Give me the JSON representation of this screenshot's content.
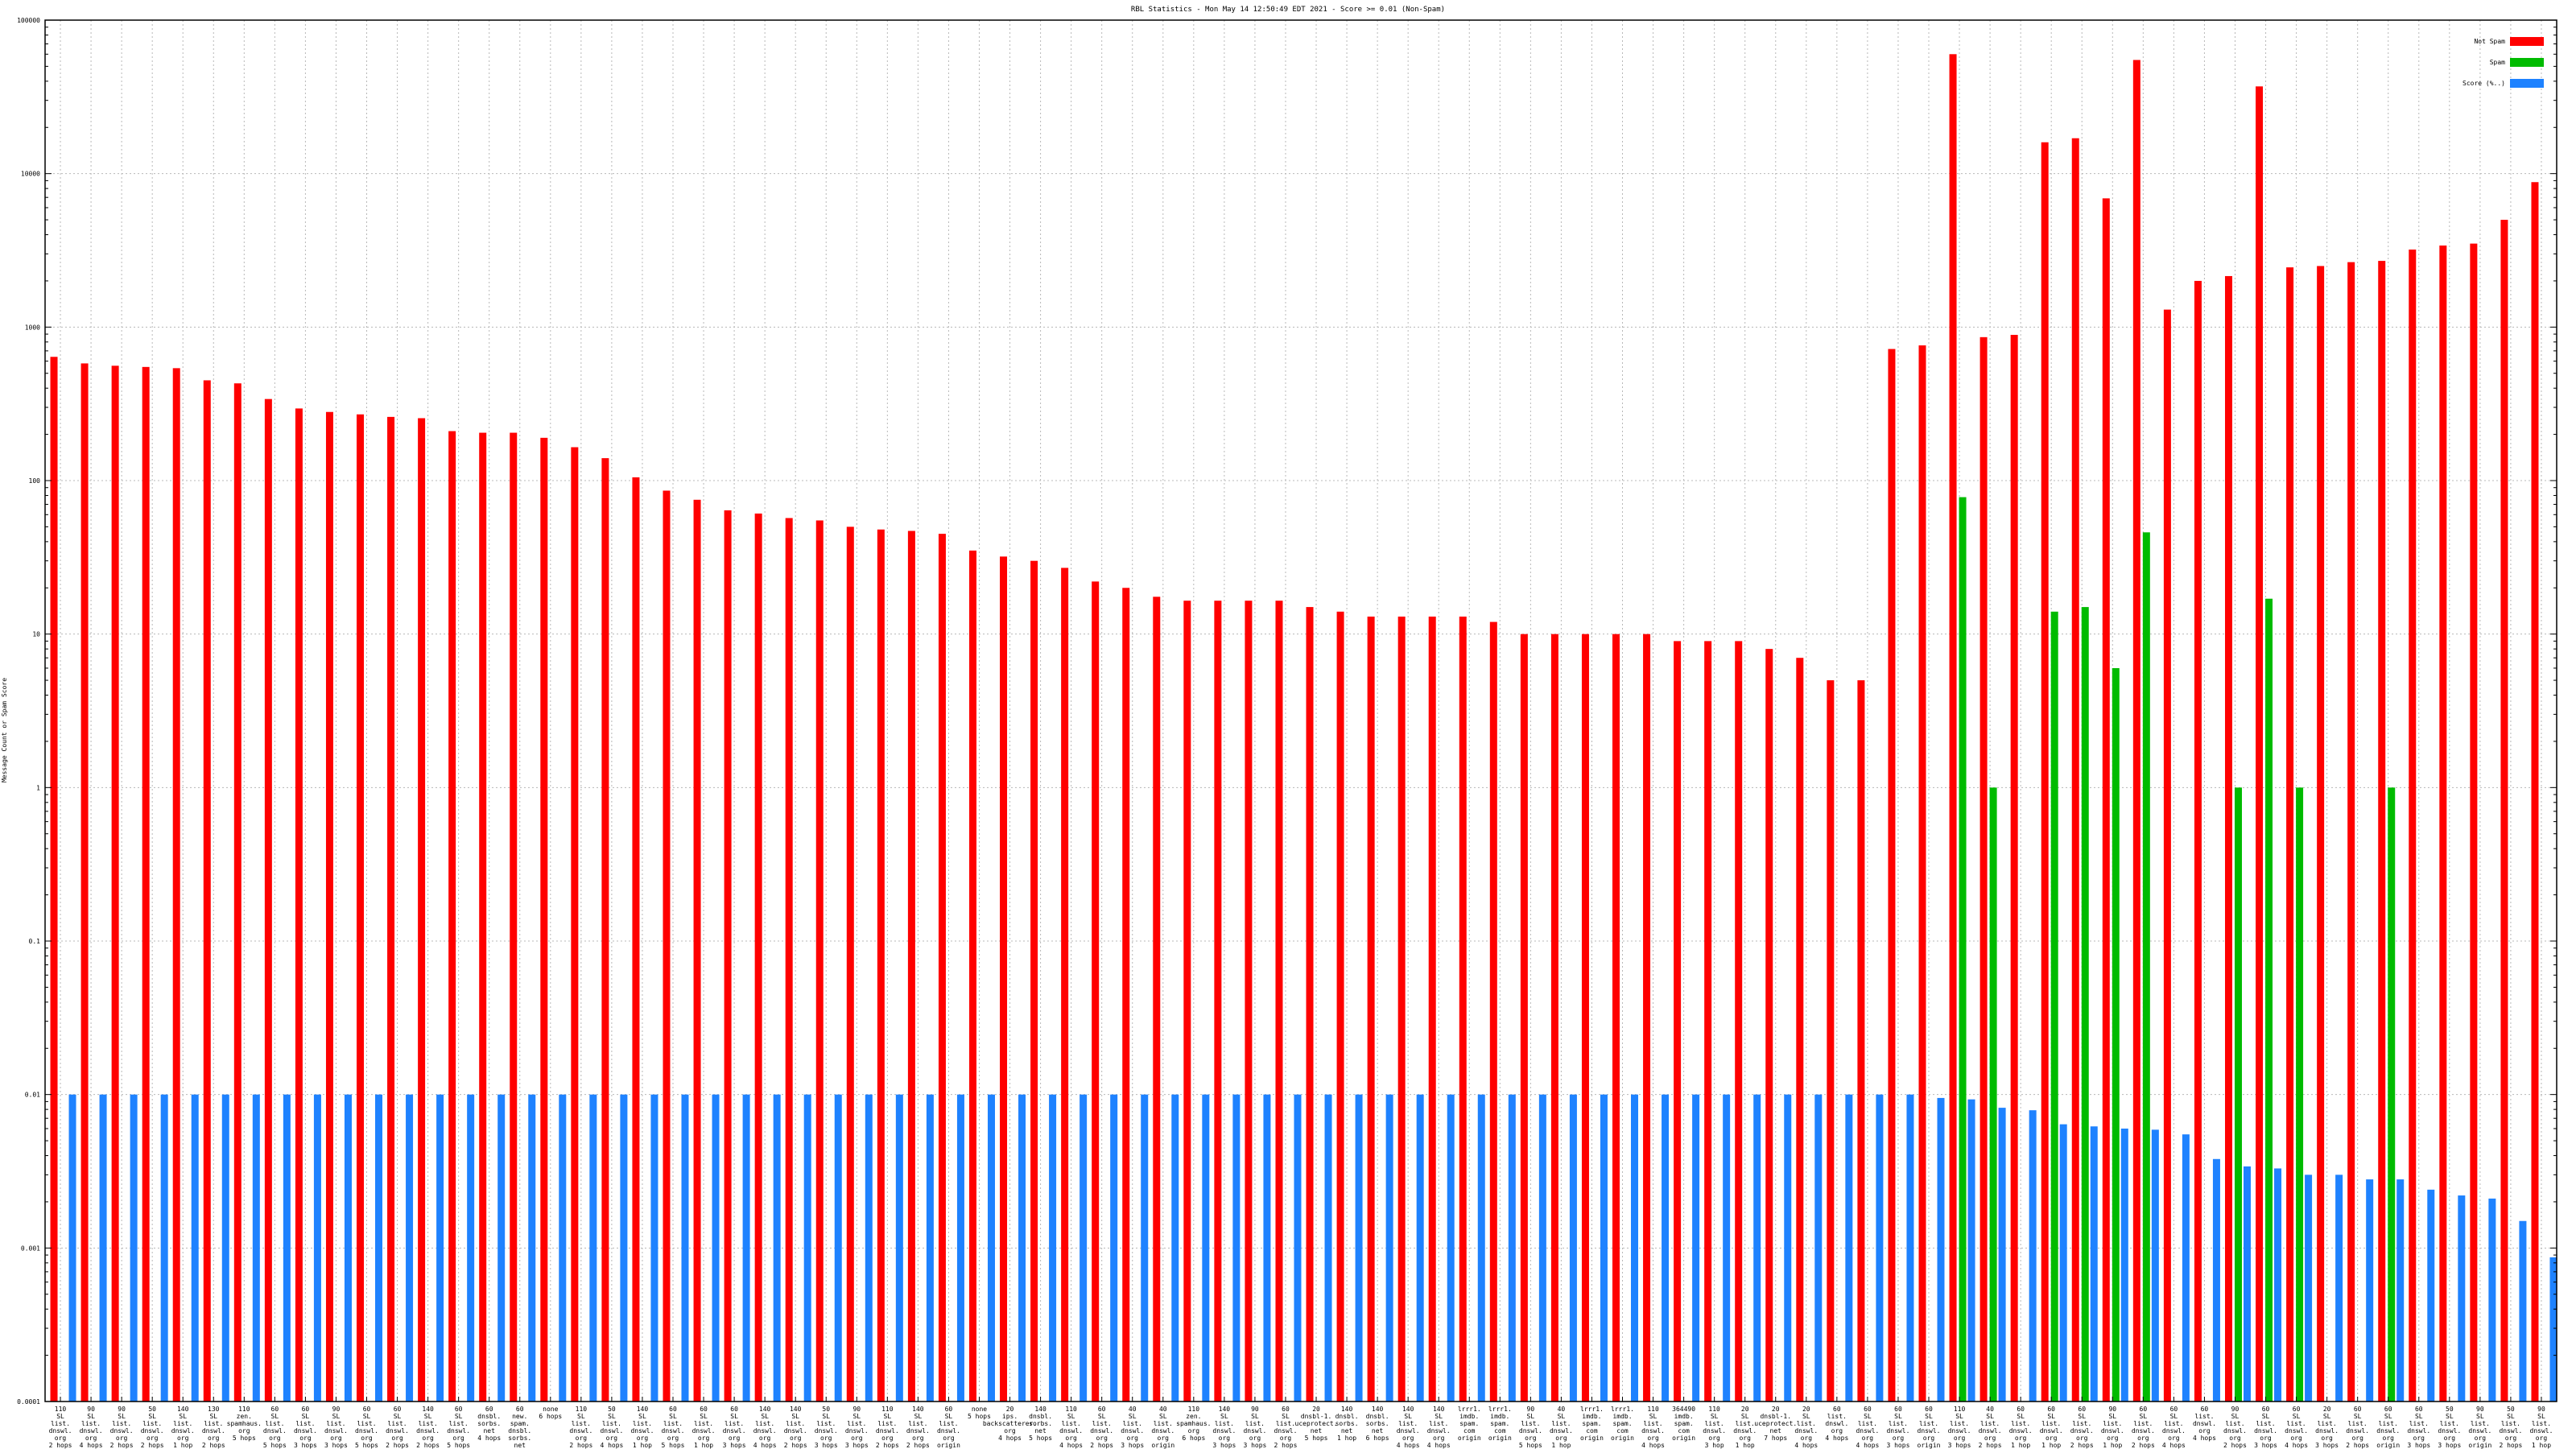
{
  "chart_data": {
    "type": "bar",
    "title": "RBL Statistics - Mon May 14 12:50:49 EDT 2021 - Score >= 0.01 (Non-Spam)",
    "ylabel": "Message Count or Spam Score",
    "xlabel": "",
    "yscale": "log",
    "ylim": [
      0.0001,
      100000
    ],
    "yticks": [
      "0.0001",
      "0.001",
      "0.01",
      "0.1",
      "1",
      "10",
      "100",
      "1000",
      "10000",
      "100000"
    ],
    "grid": true,
    "legend_position": "top-right",
    "colors": {
      "Not Spam": "#ff0000",
      "Spam": "#00bb00",
      "Score": "#1e82ff"
    },
    "categories": [
      [
        "110",
        "SL",
        "list.",
        "dnswl.",
        "org",
        "2 hops"
      ],
      [
        "90",
        "SL",
        "list.",
        "dnswl.",
        "org",
        "4 hops"
      ],
      [
        "90",
        "SL",
        "list.",
        "dnswl.",
        "org",
        "2 hops"
      ],
      [
        "50",
        "SL",
        "list.",
        "dnswl.",
        "org",
        "2 hops"
      ],
      [
        "140",
        "SL",
        "list.",
        "dnswl.",
        "org",
        "1 hop"
      ],
      [
        "130",
        "SL",
        "list.",
        "dnswl.",
        "org",
        "2 hops"
      ],
      [
        "110",
        "zen.",
        "spamhaus.",
        "org",
        "5 hops"
      ],
      [
        "60",
        "SL",
        "list.",
        "dnswl.",
        "org",
        "5 hops"
      ],
      [
        "60",
        "SL",
        "list.",
        "dnswl.",
        "org",
        "3 hops"
      ],
      [
        "90",
        "SL",
        "list.",
        "dnswl.",
        "org",
        "3 hops"
      ],
      [
        "60",
        "SL",
        "list.",
        "dnswl.",
        "org",
        "5 hops"
      ],
      [
        "60",
        "SL",
        "list.",
        "dnswl.",
        "org",
        "2 hops"
      ],
      [
        "140",
        "SL",
        "list.",
        "dnswl.",
        "org",
        "2 hops"
      ],
      [
        "60",
        "SL",
        "list.",
        "dnswl.",
        "org",
        "5 hops"
      ],
      [
        "60",
        "dnsbl.",
        "sorbs.",
        "net",
        "4 hops"
      ],
      [
        "60",
        "new.",
        "spam.",
        "dnsbl.",
        "sorbs.",
        "net",
        "4 hops"
      ],
      [
        "none",
        "6 hops"
      ],
      [
        "110",
        "SL",
        "list.",
        "dnswl.",
        "org",
        "2 hops"
      ],
      [
        "50",
        "SL",
        "list.",
        "dnswl.",
        "org",
        "4 hops"
      ],
      [
        "140",
        "SL",
        "list.",
        "dnswl.",
        "org",
        "1 hop"
      ],
      [
        "60",
        "SL",
        "list.",
        "dnswl.",
        "org",
        "5 hops"
      ],
      [
        "60",
        "SL",
        "list.",
        "dnswl.",
        "org",
        "1 hop"
      ],
      [
        "60",
        "SL",
        "list.",
        "dnswl.",
        "org",
        "3 hops"
      ],
      [
        "140",
        "SL",
        "list.",
        "dnswl.",
        "org",
        "4 hops"
      ],
      [
        "140",
        "SL",
        "list.",
        "dnswl.",
        "org",
        "2 hops"
      ],
      [
        "50",
        "SL",
        "list.",
        "dnswl.",
        "org",
        "3 hops"
      ],
      [
        "90",
        "SL",
        "list.",
        "dnswl.",
        "org",
        "3 hops"
      ],
      [
        "110",
        "SL",
        "list.",
        "dnswl.",
        "org",
        "2 hops"
      ],
      [
        "140",
        "SL",
        "list.",
        "dnswl.",
        "org",
        "2 hops"
      ],
      [
        "60",
        "SL",
        "list.",
        "dnswl.",
        "org",
        "origin"
      ],
      [
        "none",
        "5 hops"
      ],
      [
        "20",
        "ips.",
        "backscatterer.",
        "org",
        "4 hops"
      ],
      [
        "140",
        "dnsbl.",
        "sorbs.",
        "net",
        "5 hops"
      ],
      [
        "110",
        "SL",
        "list.",
        "dnswl.",
        "org",
        "4 hops"
      ],
      [
        "60",
        "SL",
        "list.",
        "dnswl.",
        "org",
        "2 hops"
      ],
      [
        "40",
        "SL",
        "list.",
        "dnswl.",
        "org",
        "3 hops"
      ],
      [
        "40",
        "SL",
        "list.",
        "dnswl.",
        "org",
        "origin"
      ],
      [
        "110",
        "zen.",
        "spamhaus.",
        "org",
        "6 hops"
      ],
      [
        "140",
        "SL",
        "list.",
        "dnswl.",
        "org",
        "3 hops"
      ],
      [
        "90",
        "SL",
        "list.",
        "dnswl.",
        "org",
        "3 hops"
      ],
      [
        "60",
        "SL",
        "list.",
        "dnswl.",
        "org",
        "2 hops"
      ],
      [
        "20",
        "dnsbl-1.",
        "uceprotect.",
        "net",
        "5 hops"
      ],
      [
        "140",
        "dnsbl.",
        "sorbs.",
        "net",
        "1 hop"
      ],
      [
        "140",
        "dnsbl.",
        "sorbs.",
        "net",
        "6 hops"
      ],
      [
        "140",
        "SL",
        "list.",
        "dnswl.",
        "org",
        "4 hops"
      ],
      [
        "140",
        "SL",
        "list.",
        "dnswl.",
        "org",
        "4 hops"
      ],
      [
        "lrrr1.",
        "imdb.",
        "spam.",
        "com",
        "origin"
      ],
      [
        "lrrr1.",
        "imdb.",
        "spam.",
        "com",
        "origin"
      ],
      [
        "90",
        "SL",
        "list.",
        "dnswl.",
        "org",
        "5 hops"
      ],
      [
        "40",
        "SL",
        "list.",
        "dnswl.",
        "org",
        "1 hop"
      ],
      [
        "lrrr1.",
        "imdb.",
        "spam.",
        "com",
        "origin"
      ],
      [
        "lrrr1.",
        "imdb.",
        "spam.",
        "com",
        "origin"
      ],
      [
        "110",
        "SL",
        "list.",
        "dnswl.",
        "org",
        "4 hops"
      ],
      [
        "364490",
        "imdb.",
        "spam.",
        "com",
        "origin"
      ],
      [
        "110",
        "SL",
        "list.",
        "dnswl.",
        "org",
        "3 hop"
      ],
      [
        "20",
        "SL",
        "list.",
        "dnswl.",
        "org",
        "1 hop"
      ],
      [
        "20",
        "dnsbl-1.",
        "uceprotect.",
        "net",
        "7 hops"
      ],
      [
        "20",
        "SL",
        "list.",
        "dnswl.",
        "org",
        "4 hops"
      ],
      [
        "60",
        "list.",
        "dnswl.",
        "org",
        "4 hops"
      ],
      [
        "60",
        "SL",
        "list.",
        "dnswl.",
        "org",
        "4 hops"
      ],
      [
        "60",
        "SL",
        "list.",
        "dnswl.",
        "org",
        "3 hops"
      ],
      [
        "60",
        "SL",
        "list.",
        "dnswl.",
        "org",
        "origin"
      ],
      [
        "110",
        "SL",
        "list.",
        "dnswl.",
        "org",
        "3 hops"
      ],
      [
        "40",
        "SL",
        "list.",
        "dnswl.",
        "org",
        "2 hops"
      ],
      [
        "60",
        "SL",
        "list.",
        "dnswl.",
        "org",
        "1 hop"
      ],
      [
        "60",
        "SL",
        "list.",
        "dnswl.",
        "org",
        "1 hop"
      ],
      [
        "60",
        "SL",
        "list.",
        "dnswl.",
        "org",
        "2 hops"
      ],
      [
        "90",
        "SL",
        "list.",
        "dnswl.",
        "org",
        "1 hop"
      ],
      [
        "60",
        "SL",
        "list.",
        "dnswl.",
        "org",
        "2 hops"
      ],
      [
        "60",
        "SL",
        "list.",
        "dnswl.",
        "org",
        "4 hops"
      ],
      [
        "60",
        "list.",
        "dnswl.",
        "org",
        "4 hops"
      ],
      [
        "90",
        "SL",
        "list.",
        "dnswl.",
        "org",
        "2 hops"
      ],
      [
        "60",
        "SL",
        "list.",
        "dnswl.",
        "org",
        "3 hops"
      ],
      [
        "60",
        "SL",
        "list.",
        "dnswl.",
        "org",
        "4 hops"
      ],
      [
        "20",
        "SL",
        "list.",
        "dnswl.",
        "org",
        "3 hops"
      ],
      [
        "60",
        "SL",
        "list.",
        "dnswl.",
        "org",
        "2 hops"
      ],
      [
        "60",
        "SL",
        "list.",
        "dnswl.",
        "org",
        "origin"
      ],
      [
        "60",
        "SL",
        "list.",
        "dnswl.",
        "org",
        "3 hops"
      ],
      [
        "50",
        "SL",
        "list.",
        "dnswl.",
        "org",
        "3 hops"
      ],
      [
        "90",
        "SL",
        "list.",
        "dnswl.",
        "org",
        "origin"
      ],
      [
        "50",
        "SL",
        "list.",
        "dnswl.",
        "org",
        "2 hops"
      ],
      [
        "90",
        "SL",
        "list.",
        "dnswl.",
        "org",
        "1 hop"
      ]
    ],
    "series": [
      {
        "name": "Not Spam",
        "values": [
          640,
          580,
          560,
          550,
          540,
          450,
          430,
          340,
          295,
          280,
          270,
          260,
          255,
          210,
          205,
          205,
          190,
          165,
          140,
          105,
          86,
          75,
          64,
          61,
          57,
          55,
          50,
          48,
          47,
          45,
          35,
          32,
          30,
          27,
          22,
          20,
          17.5,
          16.5,
          16.5,
          16.5,
          16.5,
          15,
          14,
          13,
          13,
          13,
          13,
          12,
          10,
          10,
          10,
          10,
          10,
          9,
          9,
          9,
          8,
          7,
          5,
          5,
          720,
          760,
          60000,
          860,
          890,
          16000,
          17000,
          6900,
          55000,
          1300,
          2000,
          2150,
          37000,
          2450,
          2500,
          2650,
          2700,
          3200,
          3400,
          3500,
          5000,
          8800
        ]
      },
      {
        "name": "Spam",
        "values": [
          null,
          null,
          null,
          null,
          null,
          null,
          null,
          null,
          null,
          null,
          null,
          null,
          null,
          null,
          null,
          null,
          null,
          null,
          null,
          null,
          null,
          null,
          null,
          null,
          null,
          null,
          null,
          null,
          null,
          null,
          null,
          null,
          null,
          null,
          null,
          null,
          null,
          null,
          null,
          null,
          null,
          null,
          null,
          null,
          null,
          null,
          null,
          null,
          null,
          null,
          null,
          null,
          null,
          null,
          null,
          null,
          null,
          null,
          null,
          null,
          null,
          null,
          78,
          1,
          null,
          14,
          15,
          6,
          46,
          null,
          null,
          1,
          17,
          1,
          null,
          null,
          1,
          null,
          null,
          null,
          null,
          null
        ]
      },
      {
        "name": "Score (%..)",
        "values": [
          0.01,
          0.01,
          0.01,
          0.01,
          0.01,
          0.01,
          0.01,
          0.01,
          0.01,
          0.01,
          0.01,
          0.01,
          0.01,
          0.01,
          0.01,
          0.01,
          0.01,
          0.01,
          0.01,
          0.01,
          0.01,
          0.01,
          0.01,
          0.01,
          0.01,
          0.01,
          0.01,
          0.01,
          0.01,
          0.01,
          0.01,
          0.01,
          0.01,
          0.01,
          0.01,
          0.01,
          0.01,
          0.01,
          0.01,
          0.01,
          0.01,
          0.01,
          0.01,
          0.01,
          0.01,
          0.01,
          0.01,
          0.01,
          0.01,
          0.01,
          0.01,
          0.01,
          0.01,
          0.01,
          0.01,
          0.01,
          0.01,
          0.01,
          0.01,
          0.01,
          0.01,
          0.0095,
          0.0093,
          0.0082,
          0.0079,
          0.0064,
          0.0062,
          0.006,
          0.0059,
          0.0055,
          0.0038,
          0.0034,
          0.0033,
          0.003,
          0.003,
          0.0028,
          0.0028,
          0.0024,
          0.0022,
          0.0021,
          0.0015,
          0.00087
        ]
      }
    ]
  }
}
